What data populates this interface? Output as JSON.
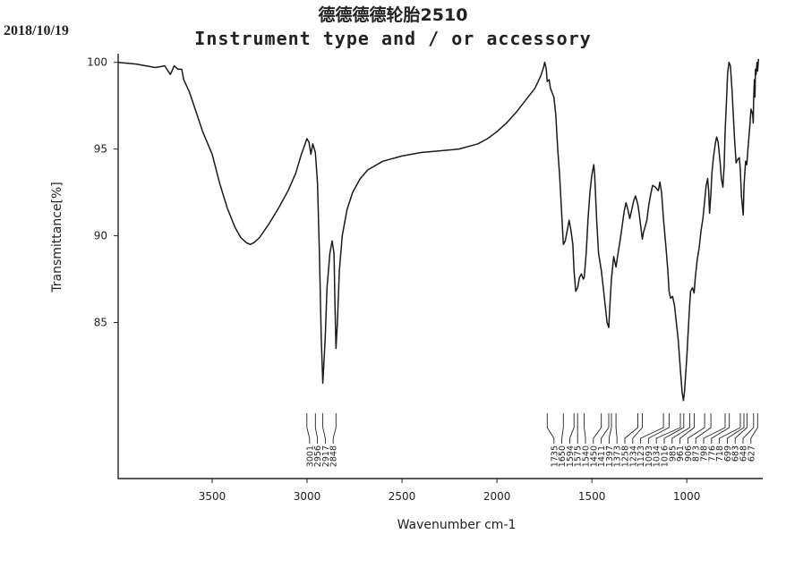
{
  "header": {
    "date": "2018/10/19",
    "title": "德德德德轮胎2510",
    "subtitle": "Instrument type and / or accessory"
  },
  "chart_data": {
    "type": "line",
    "xlabel": "Wavenumber cm-1",
    "ylabel": "Transmittance[%]",
    "xlim": [
      3995,
      600
    ],
    "ylim": [
      76,
      100.5
    ],
    "x_reversed": true,
    "x_ticks": [
      3500,
      3000,
      2500,
      2000,
      1500,
      1000
    ],
    "y_ticks": [
      85,
      90,
      95,
      100
    ],
    "grid": false,
    "line_color": "#1a1a1a",
    "series": [
      {
        "points": [
          [
            3995,
            100
          ],
          [
            3900,
            99.9
          ],
          [
            3800,
            99.7
          ],
          [
            3750,
            99.8
          ],
          [
            3720,
            99.3
          ],
          [
            3700,
            99.8
          ],
          [
            3680,
            99.6
          ],
          [
            3660,
            99.6
          ],
          [
            3650,
            99
          ],
          [
            3620,
            98.3
          ],
          [
            3580,
            97
          ],
          [
            3550,
            96
          ],
          [
            3500,
            94.7
          ],
          [
            3460,
            93
          ],
          [
            3420,
            91.6
          ],
          [
            3380,
            90.5
          ],
          [
            3350,
            89.9
          ],
          [
            3320,
            89.6
          ],
          [
            3300,
            89.5
          ],
          [
            3280,
            89.6
          ],
          [
            3250,
            89.9
          ],
          [
            3200,
            90.7
          ],
          [
            3150,
            91.6
          ],
          [
            3100,
            92.6
          ],
          [
            3060,
            93.6
          ],
          [
            3030,
            94.7
          ],
          [
            3010,
            95.3
          ],
          [
            3001,
            95.6
          ],
          [
            2990,
            95.4
          ],
          [
            2980,
            94.7
          ],
          [
            2970,
            95.3
          ],
          [
            2956,
            94.8
          ],
          [
            2945,
            93
          ],
          [
            2935,
            89
          ],
          [
            2925,
            84
          ],
          [
            2917,
            81.5
          ],
          [
            2905,
            84
          ],
          [
            2895,
            87
          ],
          [
            2880,
            89
          ],
          [
            2868,
            89.7
          ],
          [
            2858,
            89
          ],
          [
            2853,
            86
          ],
          [
            2848,
            83.5
          ],
          [
            2840,
            85
          ],
          [
            2830,
            88
          ],
          [
            2815,
            90
          ],
          [
            2790,
            91.5
          ],
          [
            2760,
            92.5
          ],
          [
            2720,
            93.3
          ],
          [
            2680,
            93.8
          ],
          [
            2600,
            94.3
          ],
          [
            2500,
            94.6
          ],
          [
            2400,
            94.8
          ],
          [
            2300,
            94.9
          ],
          [
            2200,
            95
          ],
          [
            2100,
            95.3
          ],
          [
            2050,
            95.6
          ],
          [
            2000,
            96
          ],
          [
            1950,
            96.5
          ],
          [
            1900,
            97.1
          ],
          [
            1850,
            97.8
          ],
          [
            1800,
            98.5
          ],
          [
            1770,
            99.2
          ],
          [
            1755,
            99.7
          ],
          [
            1748,
            100
          ],
          [
            1740,
            99.6
          ],
          [
            1735,
            98.9
          ],
          [
            1725,
            99
          ],
          [
            1718,
            98.5
          ],
          [
            1700,
            98
          ],
          [
            1690,
            97
          ],
          [
            1680,
            95
          ],
          [
            1670,
            93.5
          ],
          [
            1660,
            91.5
          ],
          [
            1650,
            89.5
          ],
          [
            1640,
            89.7
          ],
          [
            1630,
            90.3
          ],
          [
            1620,
            90.9
          ],
          [
            1610,
            90.3
          ],
          [
            1600,
            89.5
          ],
          [
            1594,
            88
          ],
          [
            1585,
            86.8
          ],
          [
            1575,
            87
          ],
          [
            1565,
            87.6
          ],
          [
            1555,
            87.8
          ],
          [
            1545,
            87.5
          ],
          [
            1540,
            87.6
          ],
          [
            1530,
            89
          ],
          [
            1520,
            91
          ],
          [
            1510,
            92.5
          ],
          [
            1500,
            93.5
          ],
          [
            1490,
            94.1
          ],
          [
            1485,
            93.5
          ],
          [
            1475,
            91
          ],
          [
            1465,
            89
          ],
          [
            1450,
            88
          ],
          [
            1440,
            87
          ],
          [
            1430,
            86
          ],
          [
            1420,
            85
          ],
          [
            1411,
            84.7
          ],
          [
            1405,
            86
          ],
          [
            1397,
            87.5
          ],
          [
            1385,
            88.8
          ],
          [
            1373,
            88.2
          ],
          [
            1365,
            88.8
          ],
          [
            1350,
            89.8
          ],
          [
            1340,
            90.6
          ],
          [
            1330,
            91.4
          ],
          [
            1320,
            91.9
          ],
          [
            1310,
            91.5
          ],
          [
            1300,
            91
          ],
          [
            1290,
            91.5
          ],
          [
            1280,
            92
          ],
          [
            1270,
            92.3
          ],
          [
            1258,
            91.8
          ],
          [
            1250,
            91.2
          ],
          [
            1240,
            90.3
          ],
          [
            1234,
            89.8
          ],
          [
            1228,
            90.2
          ],
          [
            1220,
            90.5
          ],
          [
            1210,
            90.9
          ],
          [
            1200,
            91.8
          ],
          [
            1190,
            92.4
          ],
          [
            1180,
            92.9
          ],
          [
            1165,
            92.8
          ],
          [
            1150,
            92.6
          ],
          [
            1142,
            93.1
          ],
          [
            1133,
            92.5
          ],
          [
            1123,
            91
          ],
          [
            1110,
            89.4
          ],
          [
            1100,
            88
          ],
          [
            1093,
            86.8
          ],
          [
            1085,
            86.4
          ],
          [
            1075,
            86.5
          ],
          [
            1065,
            86
          ],
          [
            1055,
            85
          ],
          [
            1045,
            84
          ],
          [
            1034,
            82.3
          ],
          [
            1025,
            81
          ],
          [
            1018,
            80.5
          ],
          [
            1012,
            81
          ],
          [
            1000,
            83
          ],
          [
            990,
            85
          ],
          [
            985,
            86
          ],
          [
            980,
            86.8
          ],
          [
            970,
            87
          ],
          [
            961,
            86.7
          ],
          [
            955,
            87.6
          ],
          [
            945,
            88.6
          ],
          [
            935,
            89.3
          ],
          [
            925,
            90.3
          ],
          [
            915,
            91
          ],
          [
            906,
            92
          ],
          [
            898,
            92.9
          ],
          [
            890,
            93.3
          ],
          [
            885,
            92.6
          ],
          [
            880,
            91.3
          ],
          [
            873,
            92.4
          ],
          [
            868,
            93.6
          ],
          [
            860,
            94.5
          ],
          [
            850,
            95.3
          ],
          [
            843,
            95.7
          ],
          [
            835,
            95.4
          ],
          [
            825,
            94.3
          ],
          [
            818,
            93.3
          ],
          [
            810,
            92.8
          ],
          [
            803,
            94
          ],
          [
            798,
            96
          ],
          [
            790,
            98
          ],
          [
            785,
            99.4
          ],
          [
            778,
            100
          ],
          [
            770,
            99.8
          ],
          [
            762,
            98.5
          ],
          [
            755,
            97
          ],
          [
            748,
            95.5
          ],
          [
            740,
            94.2
          ],
          [
            732,
            94.4
          ],
          [
            723,
            94.5
          ],
          [
            718,
            93.8
          ],
          [
            712,
            92.3
          ],
          [
            703,
            91.2
          ],
          [
            698,
            93
          ],
          [
            690,
            94.3
          ],
          [
            684,
            94.1
          ],
          [
            678,
            95
          ],
          [
            669,
            96.2
          ],
          [
            662,
            97.3
          ],
          [
            653,
            97
          ],
          [
            650,
            96.5
          ],
          [
            648,
            97.7
          ],
          [
            644,
            99
          ],
          [
            641,
            98
          ],
          [
            638,
            99.6
          ],
          [
            635,
            99.3
          ],
          [
            630,
            100
          ],
          [
            627,
            99.5
          ],
          [
            622,
            100.2
          ]
        ]
      }
    ],
    "peak_labels": [
      "3001",
      "2956",
      "2917",
      "2848",
      "1735",
      "1650",
      "1594",
      "1575",
      "1540",
      "1450",
      "1411",
      "1397",
      "1373",
      "1258",
      "1234",
      "1123",
      "1093",
      "1034",
      "1016",
      "985",
      "961",
      "906",
      "873",
      "798",
      "776",
      "718",
      "699",
      "683",
      "648",
      "627"
    ]
  }
}
